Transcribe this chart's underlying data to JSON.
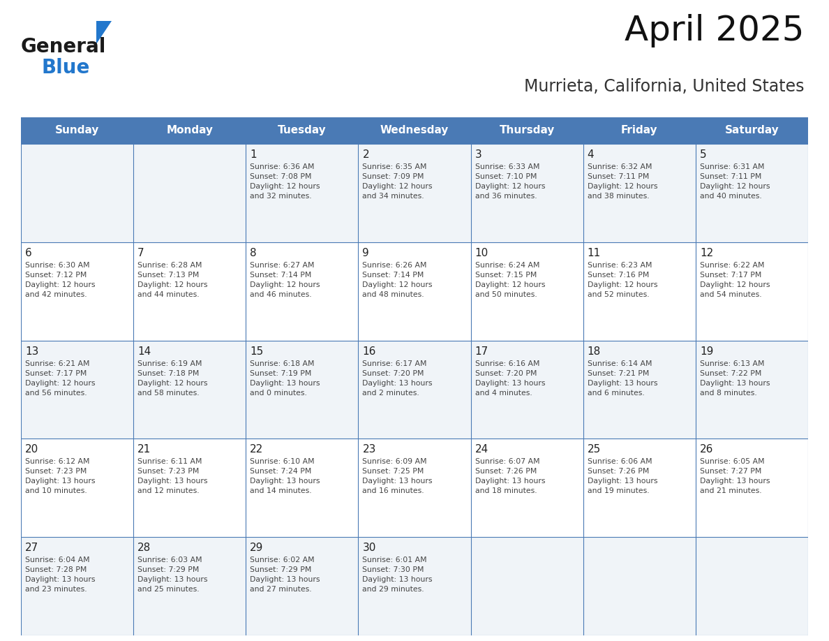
{
  "title": "April 2025",
  "subtitle": "Murrieta, California, United States",
  "header_bg_color": "#4a7ab5",
  "header_text_color": "#FFFFFF",
  "cell_bg_color_light": "#F0F4F8",
  "cell_bg_color_white": "#FFFFFF",
  "cell_text_color": "#444444",
  "day_num_color": "#222222",
  "grid_line_color": "#4a7ab5",
  "days_of_week": [
    "Sunday",
    "Monday",
    "Tuesday",
    "Wednesday",
    "Thursday",
    "Friday",
    "Saturday"
  ],
  "weeks": [
    [
      {
        "day": "",
        "info": ""
      },
      {
        "day": "",
        "info": ""
      },
      {
        "day": "1",
        "info": "Sunrise: 6:36 AM\nSunset: 7:08 PM\nDaylight: 12 hours\nand 32 minutes."
      },
      {
        "day": "2",
        "info": "Sunrise: 6:35 AM\nSunset: 7:09 PM\nDaylight: 12 hours\nand 34 minutes."
      },
      {
        "day": "3",
        "info": "Sunrise: 6:33 AM\nSunset: 7:10 PM\nDaylight: 12 hours\nand 36 minutes."
      },
      {
        "day": "4",
        "info": "Sunrise: 6:32 AM\nSunset: 7:11 PM\nDaylight: 12 hours\nand 38 minutes."
      },
      {
        "day": "5",
        "info": "Sunrise: 6:31 AM\nSunset: 7:11 PM\nDaylight: 12 hours\nand 40 minutes."
      }
    ],
    [
      {
        "day": "6",
        "info": "Sunrise: 6:30 AM\nSunset: 7:12 PM\nDaylight: 12 hours\nand 42 minutes."
      },
      {
        "day": "7",
        "info": "Sunrise: 6:28 AM\nSunset: 7:13 PM\nDaylight: 12 hours\nand 44 minutes."
      },
      {
        "day": "8",
        "info": "Sunrise: 6:27 AM\nSunset: 7:14 PM\nDaylight: 12 hours\nand 46 minutes."
      },
      {
        "day": "9",
        "info": "Sunrise: 6:26 AM\nSunset: 7:14 PM\nDaylight: 12 hours\nand 48 minutes."
      },
      {
        "day": "10",
        "info": "Sunrise: 6:24 AM\nSunset: 7:15 PM\nDaylight: 12 hours\nand 50 minutes."
      },
      {
        "day": "11",
        "info": "Sunrise: 6:23 AM\nSunset: 7:16 PM\nDaylight: 12 hours\nand 52 minutes."
      },
      {
        "day": "12",
        "info": "Sunrise: 6:22 AM\nSunset: 7:17 PM\nDaylight: 12 hours\nand 54 minutes."
      }
    ],
    [
      {
        "day": "13",
        "info": "Sunrise: 6:21 AM\nSunset: 7:17 PM\nDaylight: 12 hours\nand 56 minutes."
      },
      {
        "day": "14",
        "info": "Sunrise: 6:19 AM\nSunset: 7:18 PM\nDaylight: 12 hours\nand 58 minutes."
      },
      {
        "day": "15",
        "info": "Sunrise: 6:18 AM\nSunset: 7:19 PM\nDaylight: 13 hours\nand 0 minutes."
      },
      {
        "day": "16",
        "info": "Sunrise: 6:17 AM\nSunset: 7:20 PM\nDaylight: 13 hours\nand 2 minutes."
      },
      {
        "day": "17",
        "info": "Sunrise: 6:16 AM\nSunset: 7:20 PM\nDaylight: 13 hours\nand 4 minutes."
      },
      {
        "day": "18",
        "info": "Sunrise: 6:14 AM\nSunset: 7:21 PM\nDaylight: 13 hours\nand 6 minutes."
      },
      {
        "day": "19",
        "info": "Sunrise: 6:13 AM\nSunset: 7:22 PM\nDaylight: 13 hours\nand 8 minutes."
      }
    ],
    [
      {
        "day": "20",
        "info": "Sunrise: 6:12 AM\nSunset: 7:23 PM\nDaylight: 13 hours\nand 10 minutes."
      },
      {
        "day": "21",
        "info": "Sunrise: 6:11 AM\nSunset: 7:23 PM\nDaylight: 13 hours\nand 12 minutes."
      },
      {
        "day": "22",
        "info": "Sunrise: 6:10 AM\nSunset: 7:24 PM\nDaylight: 13 hours\nand 14 minutes."
      },
      {
        "day": "23",
        "info": "Sunrise: 6:09 AM\nSunset: 7:25 PM\nDaylight: 13 hours\nand 16 minutes."
      },
      {
        "day": "24",
        "info": "Sunrise: 6:07 AM\nSunset: 7:26 PM\nDaylight: 13 hours\nand 18 minutes."
      },
      {
        "day": "25",
        "info": "Sunrise: 6:06 AM\nSunset: 7:26 PM\nDaylight: 13 hours\nand 19 minutes."
      },
      {
        "day": "26",
        "info": "Sunrise: 6:05 AM\nSunset: 7:27 PM\nDaylight: 13 hours\nand 21 minutes."
      }
    ],
    [
      {
        "day": "27",
        "info": "Sunrise: 6:04 AM\nSunset: 7:28 PM\nDaylight: 13 hours\nand 23 minutes."
      },
      {
        "day": "28",
        "info": "Sunrise: 6:03 AM\nSunset: 7:29 PM\nDaylight: 13 hours\nand 25 minutes."
      },
      {
        "day": "29",
        "info": "Sunrise: 6:02 AM\nSunset: 7:29 PM\nDaylight: 13 hours\nand 27 minutes."
      },
      {
        "day": "30",
        "info": "Sunrise: 6:01 AM\nSunset: 7:30 PM\nDaylight: 13 hours\nand 29 minutes."
      },
      {
        "day": "",
        "info": ""
      },
      {
        "day": "",
        "info": ""
      },
      {
        "day": "",
        "info": ""
      }
    ]
  ],
  "logo_text_general": "General",
  "logo_text_blue": "Blue",
  "logo_color_general": "#1a1a1a",
  "logo_color_blue": "#2277CC",
  "logo_triangle_color": "#2277CC",
  "fig_width": 11.88,
  "fig_height": 9.18,
  "dpi": 100
}
